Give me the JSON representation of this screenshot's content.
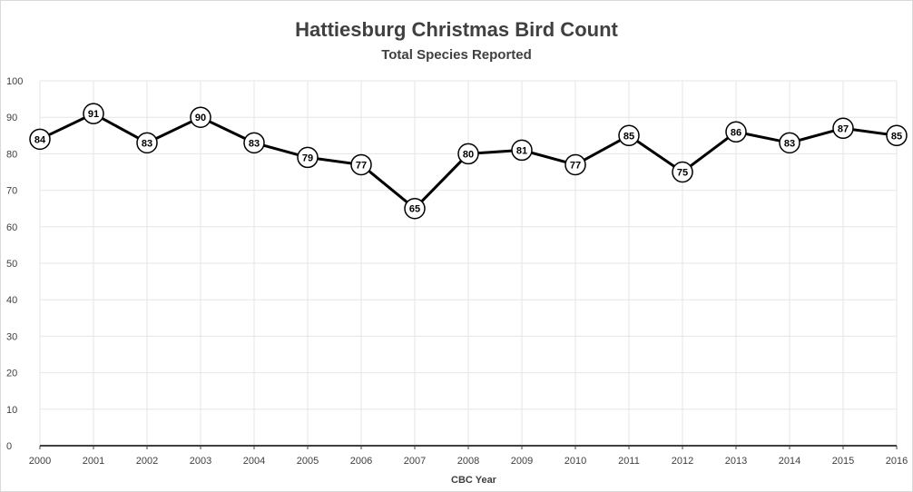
{
  "chart_data": {
    "type": "line",
    "title": "Hattiesburg Christmas Bird Count",
    "subtitle": "Total Species Reported",
    "xlabel": "CBC Year",
    "ylabel": "",
    "categories": [
      "2000",
      "2001",
      "2002",
      "2003",
      "2004",
      "2005",
      "2006",
      "2007",
      "2008",
      "2009",
      "2010",
      "2011",
      "2012",
      "2013",
      "2014",
      "2015",
      "2016"
    ],
    "series": [
      {
        "values": [
          84,
          91,
          83,
          90,
          83,
          79,
          77,
          65,
          80,
          81,
          77,
          85,
          75,
          86,
          83,
          87,
          85
        ]
      }
    ],
    "ylim": [
      0,
      100
    ],
    "yticks": [
      "0",
      "10",
      "20",
      "30",
      "40",
      "50",
      "60",
      "70",
      "80",
      "90",
      "100"
    ],
    "grid": true,
    "data_labels": true,
    "legend": "none",
    "colors": {
      "line": "#000000",
      "marker_fill": "#ffffff",
      "grid": "#e6e6e6",
      "axis": "#404040",
      "text": "#404040"
    }
  }
}
